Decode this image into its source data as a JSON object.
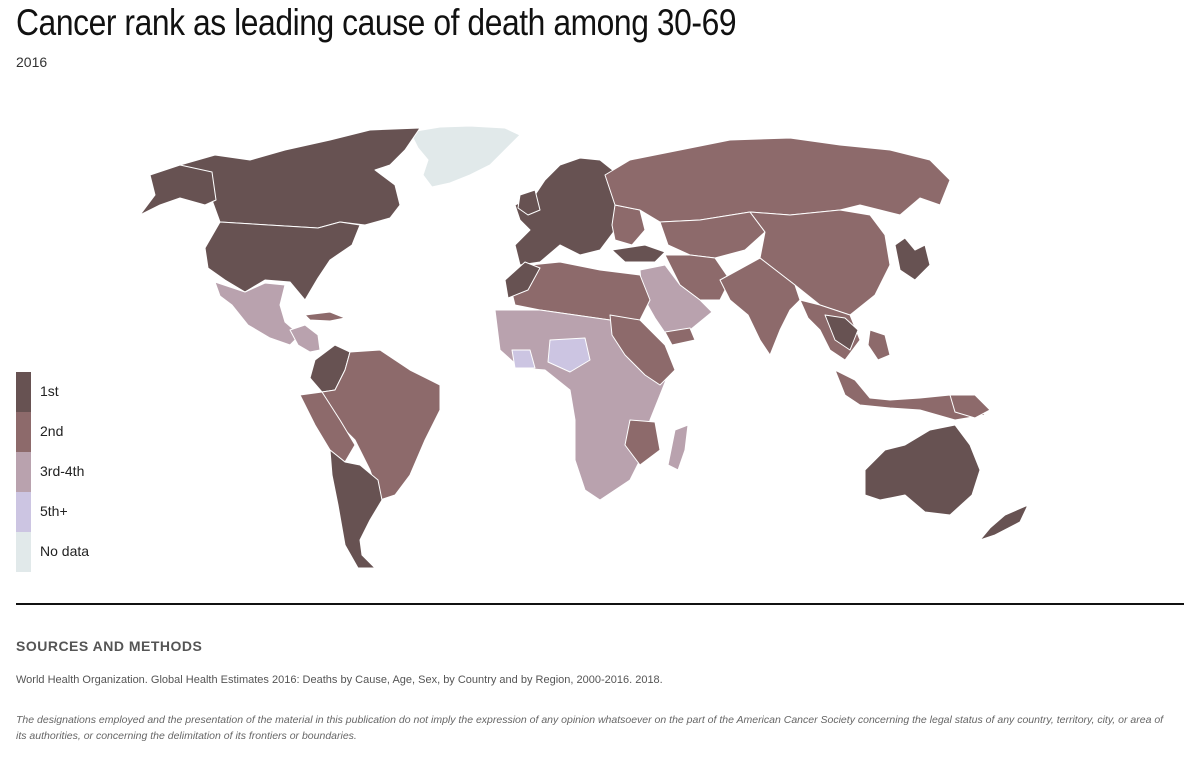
{
  "header": {
    "title": "Cancer rank as leading cause of death among 30-69",
    "subtitle": "2016"
  },
  "colors": {
    "first": "#675252",
    "second": "#8d6a6b",
    "third_fourth": "#b9a2ae",
    "fifth_plus": "#ccc5e2",
    "no_data": "#e1e9ea",
    "border": "#ffffff"
  },
  "legend": {
    "items": [
      {
        "label": "1st",
        "color": "#675252"
      },
      {
        "label": "2nd",
        "color": "#8d6a6b"
      },
      {
        "label": "3rd-4th",
        "color": "#b9a2ae"
      },
      {
        "label": "5th+",
        "color": "#ccc5e2"
      },
      {
        "label": "No data",
        "color": "#e1e9ea"
      }
    ]
  },
  "sources": {
    "heading": "SOURCES AND METHODS",
    "text": "World Health Organization. Global Health Estimates 2016: Deaths by Cause, Age, Sex, by Country and by Region, 2000-2016. 2018.",
    "disclaimer": "The designations employed and the presentation of the material in this publication do not imply the expression of any opinion whatsoever on the part of the American Cancer Society concerning the legal status of any country, territory, city, or area of its authorities, or concerning the delimitation of its frontiers or boundaries."
  }
}
